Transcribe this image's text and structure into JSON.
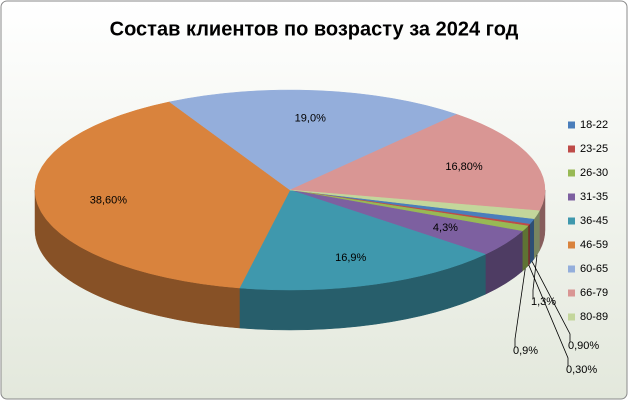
{
  "chart_data": {
    "type": "pie3d",
    "title": "Состав клиентов по возрасту за 2024 год",
    "categories": [
      "18-22",
      "23-25",
      "26-30",
      "31-35",
      "36-45",
      "46-59",
      "60-65",
      "66-79",
      "80-89"
    ],
    "values": [
      0.9,
      0.3,
      0.9,
      4.3,
      16.9,
      38.6,
      19.0,
      16.8,
      1.3
    ],
    "value_labels": [
      "0,90%",
      "0,30%",
      "0,9%",
      "4,3%",
      "16,9%",
      "38,60%",
      "19,0%",
      "16,80%",
      "1,3%"
    ],
    "colors": [
      "#4a7ebb",
      "#be4b48",
      "#98b954",
      "#7d60a0",
      "#3f98ad",
      "#d9833d",
      "#94aedb",
      "#d99694",
      "#c3d69b"
    ],
    "legend": "right"
  }
}
